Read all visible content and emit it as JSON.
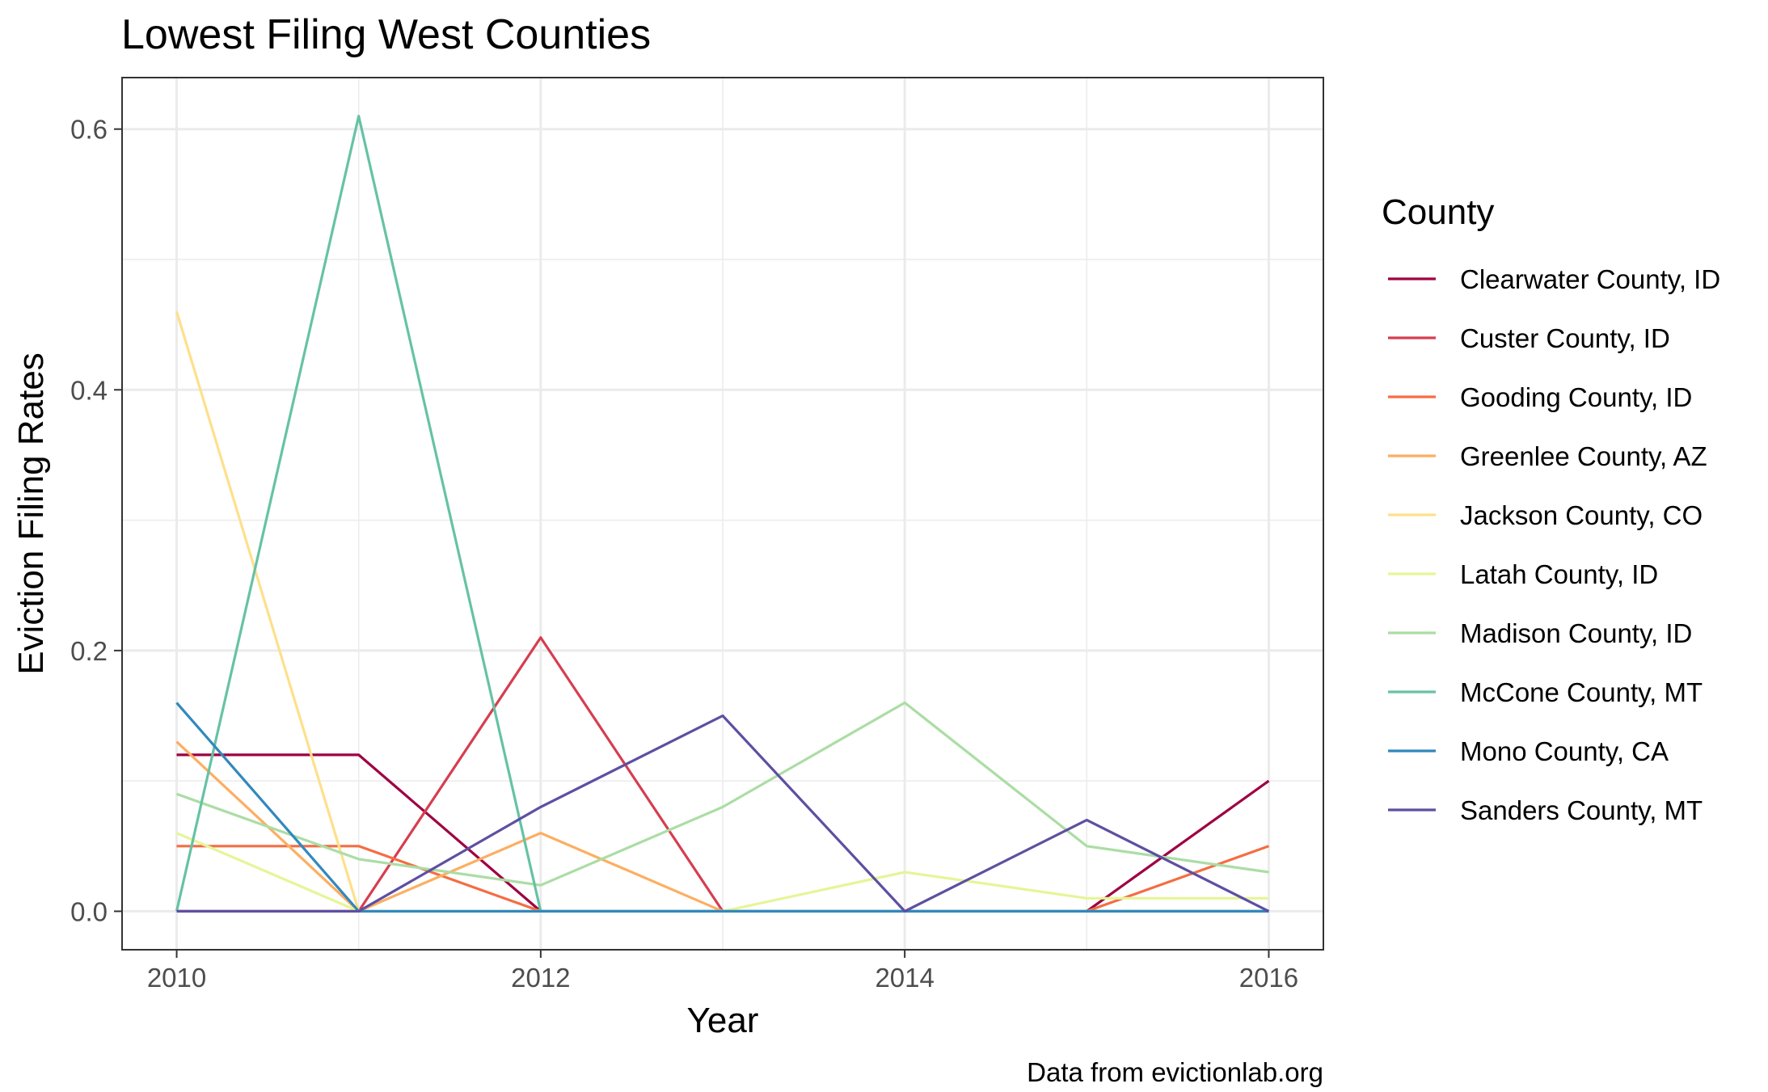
{
  "chart_data": {
    "type": "line",
    "title": "Lowest Filing West Counties",
    "xlabel": "Year",
    "ylabel": "Eviction Filing Rates",
    "caption": "Data from evictionlab.org",
    "legend_title": "County",
    "legend_position": "right",
    "grid": true,
    "x": [
      2010,
      2011,
      2012,
      2013,
      2014,
      2015,
      2016
    ],
    "xlim": [
      2009.7,
      2016.3
    ],
    "ylim": [
      -0.0295,
      0.6395
    ],
    "x_ticks": [
      2010,
      2012,
      2014,
      2016
    ],
    "y_ticks": [
      0.0,
      0.2,
      0.4,
      0.6
    ],
    "x_tick_labels": [
      "2010",
      "2012",
      "2014",
      "2016"
    ],
    "y_tick_labels": [
      "0.0",
      "0.2",
      "0.4",
      "0.6"
    ],
    "series": [
      {
        "name": "Clearwater County, ID",
        "color": "#9e0142",
        "values": [
          0.12,
          0.12,
          0.0,
          0.0,
          0.0,
          0.0,
          0.1
        ]
      },
      {
        "name": "Custer County, ID",
        "color": "#d53e4f",
        "values": [
          0.0,
          0.0,
          0.21,
          0.0,
          0.0,
          0.0,
          0.0
        ]
      },
      {
        "name": "Gooding County, ID",
        "color": "#f46d43",
        "values": [
          0.05,
          0.05,
          0.0,
          0.0,
          0.0,
          0.0,
          0.05
        ]
      },
      {
        "name": "Greenlee County, AZ",
        "color": "#fdae61",
        "values": [
          0.13,
          0.0,
          0.06,
          0.0,
          0.0,
          0.0,
          0.0
        ]
      },
      {
        "name": "Jackson County, CO",
        "color": "#fee08b",
        "values": [
          0.46,
          0.0,
          0.0,
          0.0,
          0.0,
          0.0,
          0.0
        ]
      },
      {
        "name": "Latah County, ID",
        "color": "#e6f598",
        "values": [
          0.06,
          0.0,
          0.0,
          0.0,
          0.03,
          0.01,
          0.01
        ]
      },
      {
        "name": "Madison County, ID",
        "color": "#abdda4",
        "values": [
          0.09,
          0.04,
          0.02,
          0.08,
          0.16,
          0.05,
          0.03
        ]
      },
      {
        "name": "McCone County, MT",
        "color": "#66c2a5",
        "values": [
          0.0,
          0.61,
          0.0,
          0.0,
          0.0,
          0.0,
          0.0
        ]
      },
      {
        "name": "Mono County, CA",
        "color": "#3288bd",
        "values": [
          0.16,
          0.0,
          0.0,
          0.0,
          0.0,
          0.0,
          0.0
        ]
      },
      {
        "name": "Sanders County, MT",
        "color": "#5e4fa2",
        "values": [
          0.0,
          0.0,
          0.08,
          0.15,
          0.0,
          0.07,
          0.0
        ]
      }
    ]
  }
}
